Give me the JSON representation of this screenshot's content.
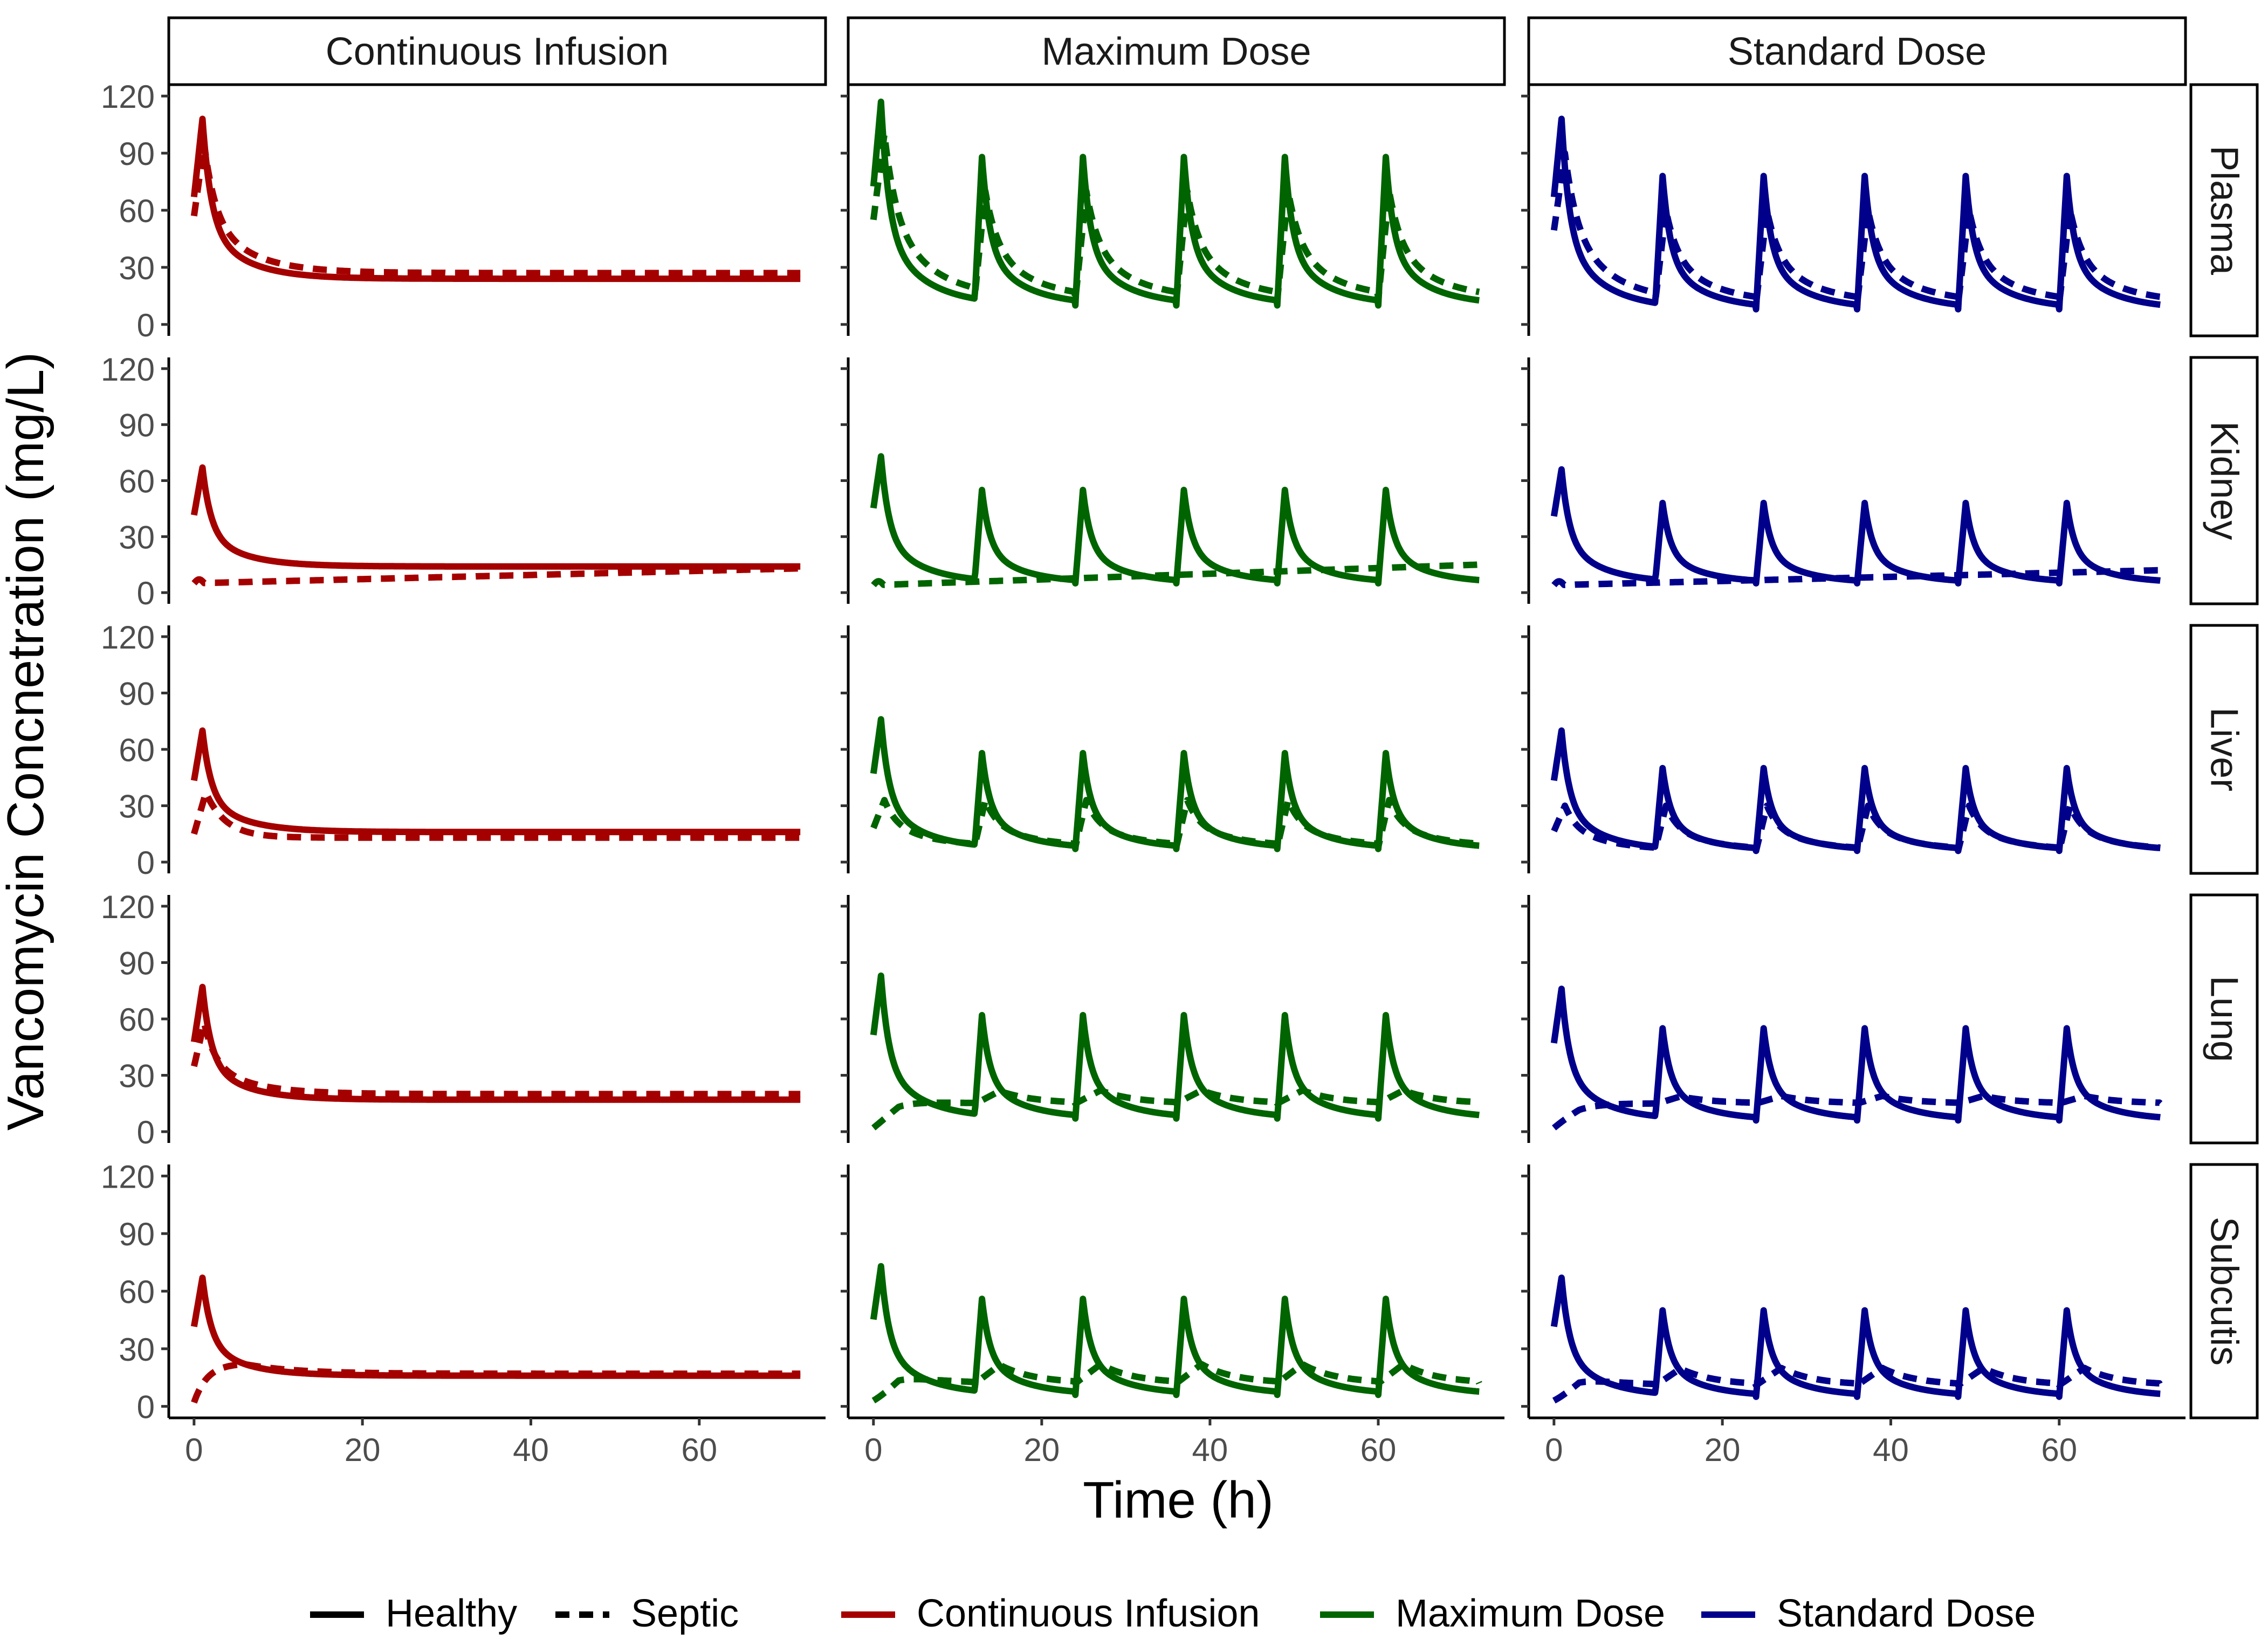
{
  "chart_data": {
    "type": "line",
    "ylabel": "Vancomycin Concnetration (mg/L)",
    "xlabel": "Time (h)",
    "xlim": [
      -3,
      75
    ],
    "ylim": [
      -6,
      126
    ],
    "x_ticks": [
      0,
      20,
      40,
      60
    ],
    "y_ticks": [
      0,
      30,
      60,
      90,
      120
    ],
    "columns": [
      "Continuous Infusion",
      "Maximum Dose",
      "Standard Dose"
    ],
    "rows": [
      "Plasma",
      "Kidney",
      "Liver",
      "Lung",
      "Subcutis"
    ],
    "colors": {
      "Continuous Infusion": "#a50000",
      "Maximum Dose": "#006400",
      "Standard Dose": "#00008b"
    },
    "legend": {
      "position": "bottom",
      "linetypes": [
        "Healthy",
        "Septic"
      ],
      "series": [
        "Continuous Infusion",
        "Maximum Dose",
        "Standard Dose"
      ]
    },
    "dosing": {
      "Continuous Infusion": {
        "schedule": "single loading then infusion",
        "times": [
          0
        ]
      },
      "Maximum Dose": {
        "schedule": "q12h",
        "times": [
          0,
          12,
          24,
          36,
          48,
          60
        ]
      },
      "Standard Dose": {
        "schedule": "q12h",
        "times": [
          0,
          12,
          24,
          36,
          48,
          60
        ]
      }
    },
    "series_params": {
      "Continuous Infusion": {
        "Plasma": {
          "healthy": {
            "peak": 108,
            "ss": 24
          },
          "septic": {
            "peak": 95,
            "ss": 27
          }
        },
        "Kidney": {
          "healthy": {
            "peak": 67,
            "ss": 14
          },
          "septic": {
            "start": 5,
            "end": 13
          }
        },
        "Liver": {
          "healthy": {
            "peak": 70,
            "ss": 16
          },
          "septic": {
            "peak": 37,
            "ss": 13
          }
        },
        "Lung": {
          "healthy": {
            "peak": 77,
            "ss": 17
          },
          "septic": {
            "peak": 58,
            "ss": 20
          }
        },
        "Subcutis": {
          "healthy": {
            "peak": 67,
            "ss": 16
          },
          "septic": {
            "peak": 22,
            "ss": 17
          }
        }
      },
      "Maximum Dose": {
        "Plasma": {
          "healthy": {
            "first_peak": 117,
            "peak": 88,
            "trough": 10
          },
          "septic": {
            "first_peak": 100,
            "peak": 70,
            "trough": 13
          }
        },
        "Kidney": {
          "healthy": {
            "first_peak": 73,
            "peak": 55,
            "trough": 5
          },
          "septic": {
            "start": 4,
            "end": 15
          }
        },
        "Liver": {
          "healthy": {
            "first_peak": 76,
            "peak": 58,
            "trough": 7
          },
          "septic": {
            "peak": 33,
            "trough": 8
          }
        },
        "Lung": {
          "healthy": {
            "first_peak": 83,
            "peak": 62,
            "trough": 7
          },
          "septic": {
            "start": 2,
            "peak": 22,
            "trough": 15
          }
        },
        "Subcutis": {
          "healthy": {
            "first_peak": 73,
            "peak": 56,
            "trough": 6
          },
          "septic": {
            "start": 3,
            "peak": 22,
            "trough": 12
          }
        }
      },
      "Standard Dose": {
        "Plasma": {
          "healthy": {
            "first_peak": 108,
            "peak": 78,
            "trough": 8
          },
          "septic": {
            "first_peak": 90,
            "peak": 60,
            "trough": 11
          }
        },
        "Kidney": {
          "healthy": {
            "first_peak": 66,
            "peak": 48,
            "trough": 5
          },
          "septic": {
            "start": 4,
            "end": 12
          }
        },
        "Liver": {
          "healthy": {
            "first_peak": 70,
            "peak": 50,
            "trough": 6
          },
          "septic": {
            "peak": 30,
            "trough": 6
          }
        },
        "Lung": {
          "healthy": {
            "first_peak": 76,
            "peak": 55,
            "trough": 6
          },
          "septic": {
            "start": 2,
            "peak": 19,
            "trough": 15
          }
        },
        "Subcutis": {
          "healthy": {
            "first_peak": 67,
            "peak": 50,
            "trough": 5
          },
          "septic": {
            "start": 3,
            "peak": 20,
            "trough": 11
          }
        }
      }
    }
  }
}
